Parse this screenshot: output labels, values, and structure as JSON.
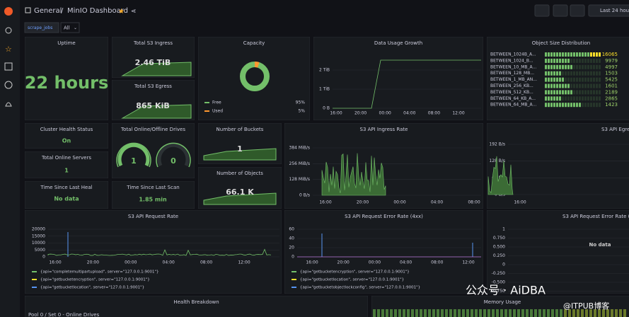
{
  "header": {
    "folder": "General",
    "separator": "/",
    "dashboard": "MinIO Dashboard",
    "time_range": "Last 24 hou"
  },
  "variables": {
    "label": "scrape_jobs",
    "value": "All"
  },
  "panels": [
    {
      "title": "Uptime",
      "value": "22 hours"
    },
    {
      "title": "Total S3 Ingress",
      "value": "2.46 TiB"
    },
    {
      "title": "Total S3 Egress",
      "value": "865 KiB"
    },
    {
      "title": "Capacity",
      "legend": [
        {
          "name": "Free",
          "value": "95%"
        },
        {
          "name": "Used",
          "value": "5%"
        }
      ]
    },
    {
      "title": "Data Usage Growth",
      "yticks": [
        "2 TiB",
        "1 TiB",
        "0 B"
      ],
      "xticks": [
        "16:00",
        "20:00",
        "00:00",
        "04:00",
        "08:00",
        "12:00"
      ]
    },
    {
      "title": "Object Size Distribution",
      "rows": [
        {
          "label": "BETWEEN_1024B_A...",
          "value": "16065"
        },
        {
          "label": "BETWEEN_1024_B...",
          "value": "9979"
        },
        {
          "label": "BETWEEN_10_MB_A...",
          "value": "4997"
        },
        {
          "label": "BETWEEN_128_MB...",
          "value": "1503"
        },
        {
          "label": "BETWEEN_1_MB_AN...",
          "value": "5425"
        },
        {
          "label": "BETWEEN_256_KB...",
          "value": "1601"
        },
        {
          "label": "BETWEEN_512_KB...",
          "value": "2189"
        },
        {
          "label": "BETWEEN_64_KB_A...",
          "value": "2865"
        },
        {
          "label": "BETWEEN_64_MB_A...",
          "value": "1423"
        }
      ]
    },
    {
      "title": "Cluster Health Status",
      "value": "On"
    },
    {
      "title": "Total Online Servers",
      "value": "1"
    },
    {
      "title": "Time Since Last Heal",
      "value": "No data"
    },
    {
      "title": "Total Online/Offline Drives",
      "gauges": [
        "1",
        "0"
      ]
    },
    {
      "title": "Time Since Last Scan",
      "value": "1.85 min"
    },
    {
      "title": "Number of Buckets",
      "value": "1"
    },
    {
      "title": "Number of Objects",
      "value": "66.1 K"
    },
    {
      "title": "S3 API Ingress Rate",
      "yticks": [
        "384 MiB/s",
        "256 MiB/s",
        "128 MiB/s",
        "0 B/s"
      ],
      "xticks": [
        "16:00",
        "20:00",
        "00:00",
        "04:00",
        "08:00"
      ]
    },
    {
      "title": "S3 API Egress Rate",
      "yticks": [
        "192 B/s",
        "128 B/s",
        "64 B/s",
        "0 B/s"
      ],
      "xticks": [
        "16:00"
      ]
    },
    {
      "title": "S3 API Request Rate",
      "yticks": [
        "20000",
        "15000",
        "10000",
        "5000",
        "0"
      ],
      "xticks": [
        "16:00",
        "20:00",
        "00:00",
        "04:00",
        "08:00",
        "12:00"
      ],
      "legend": [
        {
          "name": "{api=\"completemultipartupload\", server=\"127.0.0.1:9001\"}"
        },
        {
          "name": "{api=\"getbucketencryption\", server=\"127.0.0.1:9001\"}"
        },
        {
          "name": "{api=\"getbucketlocation\", server=\"127.0.0.1:9001\"}"
        }
      ]
    },
    {
      "title": "S3 API Request Error Rate (4xx)",
      "yticks": [
        "60",
        "40",
        "20",
        "0"
      ],
      "xticks": [
        "16:00",
        "20:00",
        "00:00",
        "04:00",
        "08:00",
        "12:00"
      ],
      "legend": [
        {
          "name": "{api=\"getbucketencryption\", server=\"127.0.0.1:9001\"}"
        },
        {
          "name": "{api=\"getbucketlocation\", server=\"127.0.0.1:9001\"}"
        },
        {
          "name": "{api=\"getbucketobjectlockconfig\", server=\"127.0.0.1:9001\"}"
        }
      ]
    },
    {
      "title": "S3 API Request Error Rate (5",
      "yticks": [
        "1",
        "0.750",
        "0.500",
        "0.250",
        "0",
        "-0.250",
        "-0.500",
        "-0.750",
        "-1"
      ],
      "value": "No data"
    },
    {
      "title": "Health Breakdown",
      "subtitle": "Pool 0 / Set 0 - Online Drives"
    },
    {
      "title": "Memory Usage"
    }
  ],
  "watermark": {
    "line1": "公众号 · AiDBA",
    "line2": "@ITPUB博客"
  }
}
